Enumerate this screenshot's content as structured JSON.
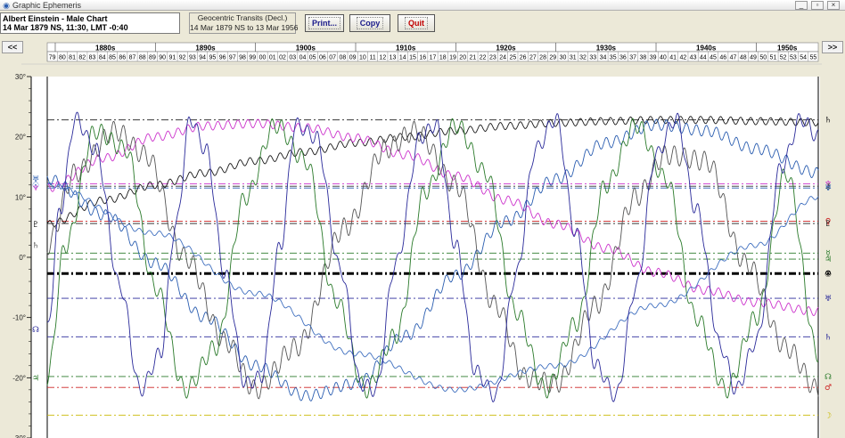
{
  "window": {
    "title": "Graphic Ephemeris"
  },
  "chart_info": {
    "line1": "Albert Einstein - Male Chart",
    "line2": "14 Mar 1879 NS, 11:30, LMT -0:40"
  },
  "range": {
    "line1": "Geocentric Transits (Decl.)",
    "line2": "14 Mar 1879 NS to 13 Mar 1956"
  },
  "toolbar": {
    "print_label": "Print...",
    "copy_label": "Copy",
    "quit_label": "Quit"
  },
  "nav": {
    "back_label": "<<",
    "forward_label": ">>"
  },
  "colors": {
    "background": "#ffffff",
    "moon_blue": "#2a2a9a",
    "venus_mars_green": "#2a7a2a",
    "neptune_magenta": "#cc33cc",
    "pluto_black": "#1a1a1a",
    "saturn_gray": "#555555",
    "sun_blue": "#3f6fbf"
  },
  "chart_data": {
    "type": "line",
    "title": "Geocentric Transits (Decl.)",
    "xlim": [
      1879.2,
      1956.2
    ],
    "ylim": [
      -30,
      30
    ],
    "y_ticks": [
      "30°",
      "20°",
      "10°",
      "0°",
      "-10°",
      "-20°",
      "-30°"
    ],
    "y_tick_values": [
      30,
      20,
      10,
      0,
      -10,
      -20,
      -30
    ],
    "decades": [
      "1880s",
      "1890s",
      "1900s",
      "1910s",
      "1920s",
      "1930s",
      "1940s",
      "1950s"
    ],
    "year_labels": [
      "79",
      "80",
      "81",
      "82",
      "83",
      "84",
      "85",
      "86",
      "87",
      "88",
      "89",
      "90",
      "91",
      "92",
      "93",
      "94",
      "95",
      "96",
      "97",
      "98",
      "99",
      "00",
      "01",
      "02",
      "03",
      "04",
      "05",
      "06",
      "07",
      "08",
      "09",
      "10",
      "11",
      "12",
      "13",
      "14",
      "15",
      "16",
      "17",
      "18",
      "19",
      "20",
      "21",
      "22",
      "23",
      "24",
      "25",
      "26",
      "27",
      "28",
      "29",
      "30",
      "31",
      "32",
      "33",
      "34",
      "35",
      "36",
      "37",
      "38",
      "39",
      "40",
      "41",
      "42",
      "43",
      "44",
      "45",
      "46",
      "47",
      "48",
      "49",
      "50",
      "51",
      "52",
      "53",
      "54",
      "55"
    ],
    "natal_lines": [
      {
        "glyph": "♄",
        "name": "Pluto natal",
        "value": 22.8,
        "color": "#1a1a1a"
      },
      {
        "glyph": "♆",
        "name": "Neptune natal",
        "value": 12.2,
        "color": "#cc33cc"
      },
      {
        "glyph": "⚷",
        "name": "Chiron natal",
        "value": 11.8,
        "color": "#333333"
      },
      {
        "glyph": "♅",
        "name": "Uranus natal",
        "value": 11.5,
        "color": "#2a5db0"
      },
      {
        "glyph": "♀",
        "name": "Venus natal",
        "value": 6.0,
        "color": "#cc2222"
      },
      {
        "glyph": "♇",
        "name": "Pluto natal 2",
        "value": 5.6,
        "color": "#1a1a1a"
      },
      {
        "glyph": "☿",
        "name": "Mercury natal",
        "value": 0.7,
        "color": "#2a7a2a"
      },
      {
        "glyph": "♃",
        "name": "Jupiter natal",
        "value": -0.3,
        "color": "#2a7a2a"
      },
      {
        "glyph": "⊗",
        "name": "Part of Fortune",
        "value": -2.6,
        "color": "#000000"
      },
      {
        "glyph": "☉",
        "name": "Sun natal",
        "value": -2.8,
        "color": "#000000"
      },
      {
        "glyph": "♅",
        "name": "Node",
        "value": -6.8,
        "color": "#2a2a9a"
      },
      {
        "glyph": "♄",
        "name": "Saturn natal",
        "value": -13.2,
        "color": "#2a2a9a"
      },
      {
        "glyph": "☊",
        "name": "North Node",
        "value": -19.8,
        "color": "#2a7a2a"
      },
      {
        "glyph": "♂",
        "name": "Mars natal",
        "value": -21.6,
        "color": "#cc2222"
      },
      {
        "glyph": "☽",
        "name": "Moon natal",
        "value": -26.2,
        "color": "#c9b800"
      }
    ],
    "series": [
      {
        "name": "Pluto",
        "glyph": "♇",
        "color": "#1a1a1a",
        "x": [
          1879.2,
          1885,
          1890,
          1895,
          1900,
          1905,
          1910,
          1915,
          1920,
          1925,
          1930,
          1935,
          1940,
          1945,
          1950,
          1956.2
        ],
        "y": [
          5.5,
          9.5,
          12,
          14,
          16,
          17.5,
          19,
          20,
          21,
          21.8,
          22.3,
          22.6,
          22.8,
          22.8,
          22.6,
          22.4
        ]
      },
      {
        "name": "Neptune",
        "glyph": "♆",
        "color": "#cc33cc",
        "x": [
          1879.2,
          1885,
          1890,
          1895,
          1900,
          1905,
          1910,
          1915,
          1920,
          1925,
          1930,
          1935,
          1940,
          1945,
          1950,
          1956.2
        ],
        "y": [
          11.5,
          16.5,
          20,
          21.8,
          22.2,
          21.5,
          19.8,
          17,
          13.5,
          9.5,
          5.5,
          1.5,
          -2.5,
          -5.5,
          -7.5,
          -9
        ]
      },
      {
        "name": "Uranus",
        "glyph": "♅",
        "color": "#2a5db0",
        "x": [
          1879.2,
          1885,
          1890,
          1895,
          1900,
          1905,
          1910,
          1915,
          1920,
          1925,
          1930,
          1935,
          1940,
          1945,
          1950,
          1956.2
        ],
        "y": [
          13,
          7,
          -1,
          -10,
          -18,
          -23,
          -21,
          -13,
          -3,
          6,
          13,
          19,
          22,
          21,
          18,
          14
        ]
      },
      {
        "name": "Saturn",
        "glyph": "♄",
        "color": "#555555",
        "x": [
          1879.2,
          1882,
          1886,
          1889,
          1893,
          1897,
          1900,
          1904,
          1909,
          1913,
          1916,
          1920,
          1924,
          1927,
          1930,
          1934,
          1938,
          1941,
          1945,
          1949,
          1953,
          1956.2
        ],
        "y": [
          2,
          14,
          21,
          17,
          0,
          -14,
          -22,
          -15,
          5,
          18,
          21,
          12,
          -8,
          -20,
          -21,
          -8,
          10,
          17,
          16,
          -1,
          -15,
          -22
        ]
      },
      {
        "name": "Jupiter",
        "glyph": "♃",
        "color": "#2a7a2a",
        "x": [
          1879.2,
          1881,
          1884,
          1887,
          1890,
          1893,
          1896,
          1899,
          1902,
          1905,
          1908,
          1911,
          1914,
          1917,
          1920,
          1923,
          1926,
          1929,
          1932,
          1935,
          1938,
          1941,
          1944,
          1947,
          1950,
          1953,
          1956.2
        ],
        "y": [
          -20,
          2,
          21,
          18,
          -5,
          -22,
          -15,
          10,
          22,
          16,
          -7,
          -22,
          -13,
          11,
          22,
          14,
          -9,
          -22,
          -11,
          12,
          22,
          13,
          -10,
          -22,
          -10,
          14,
          -16
        ]
      },
      {
        "name": "Sun",
        "glyph": "☉",
        "color": "#3f6fbf",
        "x": [
          1879.2,
          1890,
          1900,
          1910,
          1920,
          1930,
          1940,
          1950,
          1956.2
        ],
        "y": [
          12,
          4,
          -6,
          -16,
          -22,
          -18,
          -8,
          2,
          10
        ]
      },
      {
        "name": "Moon Node",
        "glyph": "☊",
        "color": "#2a2a9a",
        "x": [
          1879.2,
          1880.5,
          1882,
          1884,
          1886.5,
          1888.5,
          1890.5,
          1892,
          1893.5,
          1895,
          1897,
          1899,
          1900.5,
          1902.5,
          1904,
          1906,
          1908.5,
          1910.5,
          1912,
          1914,
          1916.5,
          1918,
          1920,
          1922,
          1924,
          1926,
          1928,
          1930,
          1932,
          1934,
          1936,
          1938,
          1940,
          1942,
          1944,
          1946.5,
          1948,
          1950,
          1952.5,
          1954.5,
          1956.2
        ],
        "y": [
          -12,
          8,
          23,
          18,
          -5,
          -22,
          -16,
          5,
          23,
          18,
          -3,
          -21,
          -20,
          2,
          22,
          20,
          -2,
          -21,
          -22,
          -1,
          20,
          22,
          2,
          -19,
          -23,
          -3,
          18,
          23,
          4,
          -18,
          -23,
          -5,
          17,
          23,
          8,
          -15,
          -22,
          -14,
          15,
          23,
          20
        ]
      }
    ]
  }
}
